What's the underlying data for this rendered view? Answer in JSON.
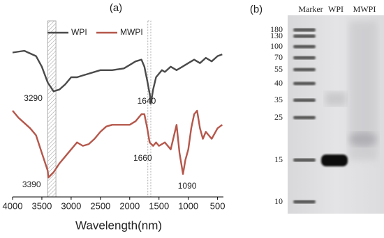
{
  "chart_data": [
    {
      "type": "line",
      "title": "(a)",
      "x_label": "Wavelength(nm)",
      "xlim": [
        4000,
        400
      ],
      "xticks": [
        4000,
        3500,
        3000,
        2500,
        2000,
        1500,
        1000,
        500
      ],
      "ylim": [
        0,
        100
      ],
      "legend": "upper left",
      "bands": [
        [
          3260,
          3400
        ],
        [
          1640,
          1690
        ]
      ],
      "series": [
        {
          "name": "WPI",
          "color": "#4a4a4a",
          "x": [
            4000,
            3800,
            3600,
            3500,
            3400,
            3300,
            3200,
            3100,
            3000,
            2900,
            2800,
            2700,
            2500,
            2300,
            2100,
            2000,
            1900,
            1800,
            1750,
            1700,
            1650,
            1640,
            1620,
            1600,
            1550,
            1500,
            1450,
            1400,
            1300,
            1200,
            1100,
            1000,
            900,
            800,
            700,
            600,
            500,
            420
          ],
          "values": [
            82,
            83,
            80,
            74,
            65,
            60,
            61,
            64,
            68,
            68,
            69,
            70,
            72,
            72,
            73,
            75,
            77,
            78,
            74,
            66,
            57,
            53,
            57,
            61,
            68,
            70,
            72,
            71,
            74,
            72,
            74,
            76,
            78,
            76,
            79,
            77,
            80,
            81
          ]
        },
        {
          "name": "MWPI",
          "color": "#b5574b",
          "x": [
            4000,
            3900,
            3800,
            3700,
            3600,
            3500,
            3400,
            3390,
            3300,
            3200,
            3100,
            3000,
            2900,
            2800,
            2700,
            2600,
            2500,
            2400,
            2300,
            2000,
            1900,
            1800,
            1750,
            1700,
            1660,
            1600,
            1550,
            1500,
            1400,
            1300,
            1200,
            1150,
            1100,
            1090,
            1050,
            1000,
            950,
            900,
            850,
            800,
            750,
            700,
            600,
            500,
            420
          ],
          "values": [
            49,
            45,
            42,
            39,
            35,
            25,
            15,
            11,
            14,
            19,
            23,
            27,
            31,
            29,
            30,
            33,
            37,
            40,
            41,
            41,
            43,
            47,
            47,
            39,
            31,
            29,
            31,
            29,
            31,
            27,
            41,
            25,
            15,
            13,
            21,
            27,
            39,
            47,
            49,
            39,
            33,
            37,
            33,
            39,
            41
          ]
        }
      ],
      "annotations": [
        {
          "label": "3290",
          "x": 3290
        },
        {
          "label": "1640",
          "x": 1640
        },
        {
          "label": "1660",
          "x": 1660
        },
        {
          "label": "3390",
          "x": 3390
        },
        {
          "label": "1090",
          "x": 1090
        }
      ]
    },
    {
      "type": "gel",
      "title": "(b)",
      "lanes": [
        "Marker",
        "WPI",
        "MWPI"
      ],
      "ladder": [
        180,
        130,
        100,
        70,
        55,
        40,
        35,
        25,
        15,
        10
      ]
    }
  ]
}
